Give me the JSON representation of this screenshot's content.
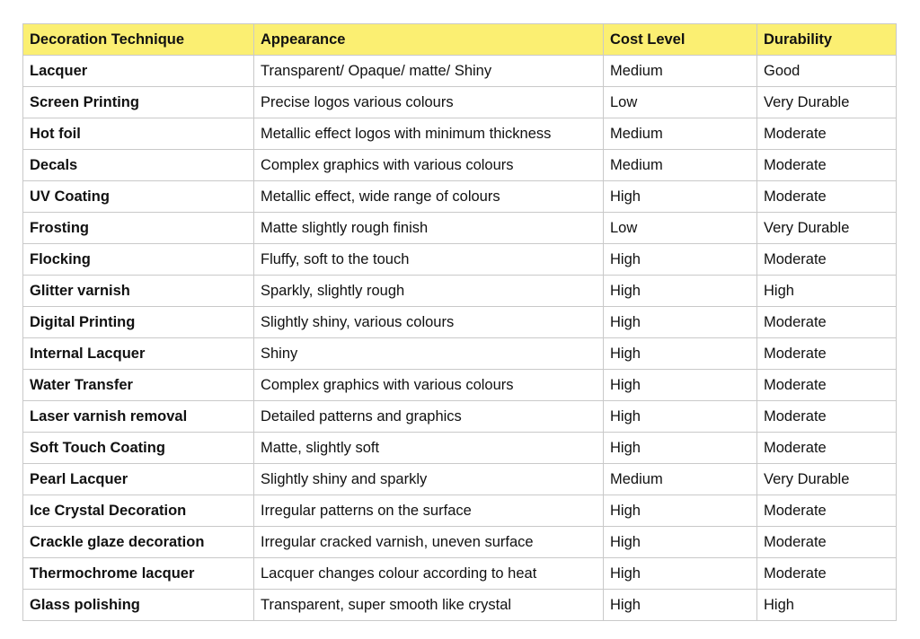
{
  "table": {
    "header": [
      "Decoration Technique",
      "Appearance",
      "Cost Level",
      "Durability"
    ],
    "rows": [
      [
        "Lacquer",
        "Transparent/ Opaque/ matte/ Shiny",
        "Medium",
        "Good"
      ],
      [
        "Screen Printing",
        "Precise logos various colours",
        "Low",
        "Very Durable"
      ],
      [
        "Hot foil",
        "Metallic effect logos with minimum thickness",
        "Medium",
        "Moderate"
      ],
      [
        "Decals",
        "Complex graphics with various colours",
        "Medium",
        "Moderate"
      ],
      [
        "UV Coating",
        "Metallic effect, wide range of colours",
        "High",
        "Moderate"
      ],
      [
        "Frosting",
        "Matte slightly rough finish",
        "Low",
        "Very Durable"
      ],
      [
        "Flocking",
        "Fluffy, soft to the touch",
        "High",
        "Moderate"
      ],
      [
        "Glitter varnish",
        "Sparkly, slightly rough",
        "High",
        "High"
      ],
      [
        "Digital Printing",
        "Slightly shiny, various colours",
        "High",
        "Moderate"
      ],
      [
        "Internal Lacquer",
        "Shiny",
        "High",
        "Moderate"
      ],
      [
        "Water Transfer",
        "Complex graphics with various colours",
        "High",
        "Moderate"
      ],
      [
        "Laser varnish removal",
        "Detailed patterns and graphics",
        "High",
        "Moderate"
      ],
      [
        "Soft Touch Coating",
        "Matte, slightly soft",
        "High",
        "Moderate"
      ],
      [
        "Pearl Lacquer",
        "Slightly shiny and sparkly",
        "Medium",
        "Very Durable"
      ],
      [
        "Ice Crystal Decoration",
        "Irregular patterns on the surface",
        "High",
        "Moderate"
      ],
      [
        "Crackle glaze decoration",
        "Irregular cracked varnish, uneven surface",
        "High",
        "Moderate"
      ],
      [
        "Thermochrome lacquer",
        "Lacquer changes colour according to heat",
        "High",
        "Moderate"
      ],
      [
        "Glass polishing",
        "Transparent, super smooth like crystal",
        "High",
        "High"
      ]
    ]
  }
}
